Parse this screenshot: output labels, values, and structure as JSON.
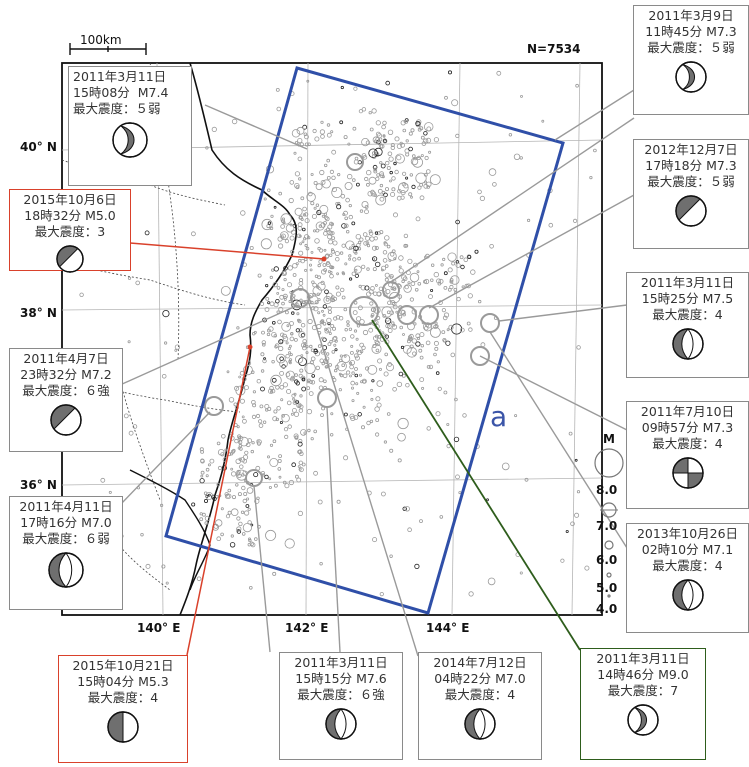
{
  "scale_label": "100km",
  "count_label": "N=7534",
  "region_label": "a",
  "lat_labels": [
    "40° N",
    "38° N",
    "36° N"
  ],
  "lon_labels": [
    "140° E",
    "142° E",
    "144° E"
  ],
  "magnitude_legend": {
    "title": "M",
    "values": [
      "8.0",
      "7.0",
      "6.0",
      "5.0",
      "4.0"
    ]
  },
  "colors": {
    "region_outline": "#2f4fa8",
    "red_frame": "#d9412b",
    "green_frame": "#2e5d1c",
    "grey_frame": "#8a8a8a",
    "quake_grey": "#9a9a9a"
  },
  "events": [
    {
      "date": "2011年3月11日",
      "time": "15時08分",
      "mag": "M7.4",
      "intensity": "最大震度：５弱",
      "mech": "thrust-icon"
    },
    {
      "date": "2015年10月6日",
      "time": "18時32分",
      "mag": "M5.0",
      "intensity": "最大震度：3",
      "mech": "oblique-icon"
    },
    {
      "date": "2011年4月7日",
      "time": "23時32分",
      "mag": "M7.2",
      "intensity": "最大震度：６強",
      "mech": "oblique-icon"
    },
    {
      "date": "2011年4月11日",
      "time": "17時16分",
      "mag": "M7.0",
      "intensity": "最大震度：６弱",
      "mech": "normal-icon"
    },
    {
      "date": "2015年10月21日",
      "time": "15時04分",
      "mag": "M5.3",
      "intensity": "最大震度：4",
      "mech": "strike-slip-icon"
    },
    {
      "date": "2011年3月11日",
      "time": "15時15分",
      "mag": "M7.6",
      "intensity": "最大震度：６強",
      "mech": "normal-icon"
    },
    {
      "date": "2014年7月12日",
      "time": "04時22分",
      "mag": "M7.0",
      "intensity": "最大震度：4",
      "mech": "normal-icon"
    },
    {
      "date": "2011年3月11日",
      "time": "14時46分",
      "mag": "M9.0",
      "intensity": "最大震度：7",
      "mech": "thrust-icon"
    },
    {
      "date": "2011年3月9日",
      "time": "11時45分",
      "mag": "M7.3",
      "intensity": "最大震度：５弱",
      "mech": "thrust-icon"
    },
    {
      "date": "2012年12月7日",
      "time": "17時18分",
      "mag": "M7.3",
      "intensity": "最大震度：５弱",
      "mech": "oblique-icon"
    },
    {
      "date": "2011年3月11日",
      "time": "15時25分",
      "mag": "M7.5",
      "intensity": "最大震度：4",
      "mech": "normal-icon"
    },
    {
      "date": "2011年7月10日",
      "time": "09時57分",
      "mag": "M7.3",
      "intensity": "最大震度：4",
      "mech": "strike-slip-icon"
    },
    {
      "date": "2013年10月26日",
      "time": "02時10分",
      "mag": "M7.1",
      "intensity": "最大震度：4",
      "mech": "normal-icon"
    }
  ]
}
